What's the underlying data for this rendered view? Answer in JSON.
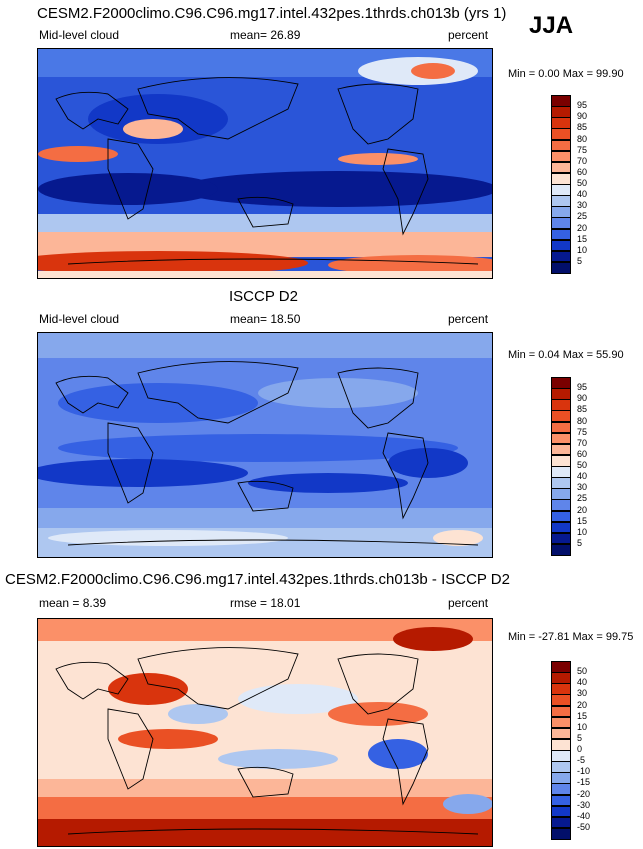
{
  "season": "JJA",
  "panels": [
    {
      "title": "CESM2.F2000climo.C96.C96.mg17.intel.432pes.1thrds.ch013b (yrs 1)",
      "left_label": "Mid-level cloud",
      "stat_text": "mean=  26.89",
      "units": "percent",
      "minmax": "Min =   0.00 Max =  99.90",
      "colorbar": {
        "labels": [
          "95",
          "90",
          "85",
          "80",
          "75",
          "70",
          "60",
          "50",
          "40",
          "30",
          "25",
          "20",
          "15",
          "10",
          "5"
        ],
        "colors": [
          "#7a0000",
          "#b51a00",
          "#d9340d",
          "#ea5024",
          "#f46d43",
          "#fb9068",
          "#fcb698",
          "#fde3d3",
          "#dfe9f8",
          "#aec7f0",
          "#86a8ec",
          "#5f85ea",
          "#3561e3",
          "#1238c7",
          "#06198f",
          "#020f6a"
        ]
      }
    },
    {
      "title": "ISCCP D2",
      "left_label": "Mid-level cloud",
      "stat_text": "mean=  18.50",
      "units": "percent",
      "minmax": "Min =   0.04 Max =  55.90",
      "colorbar": {
        "labels": [
          "95",
          "90",
          "85",
          "80",
          "75",
          "70",
          "60",
          "50",
          "40",
          "30",
          "25",
          "20",
          "15",
          "10",
          "5"
        ],
        "colors": [
          "#7a0000",
          "#b51a00",
          "#d9340d",
          "#ea5024",
          "#f46d43",
          "#fb9068",
          "#fcb698",
          "#fde3d3",
          "#dfe9f8",
          "#aec7f0",
          "#86a8ec",
          "#5f85ea",
          "#3561e3",
          "#1238c7",
          "#06198f",
          "#020f6a"
        ]
      }
    },
    {
      "title": "CESM2.F2000climo.C96.C96.mg17.intel.432pes.1thrds.ch013b - ISCCP D2",
      "left_label": "mean =   8.39",
      "stat_text": "rmse =  18.01",
      "units": "percent",
      "minmax": "Min = -27.81 Max =  99.75",
      "colorbar": {
        "labels": [
          "50",
          "40",
          "30",
          "20",
          "15",
          "10",
          "5",
          "0",
          "-5",
          "-10",
          "-15",
          "-20",
          "-30",
          "-40",
          "-50"
        ],
        "colors": [
          "#7a0000",
          "#b51a00",
          "#d9340d",
          "#ea5024",
          "#f46d43",
          "#fb9068",
          "#fcb698",
          "#fde3d3",
          "#dfe9f8",
          "#aec7f0",
          "#86a8ec",
          "#5f85ea",
          "#3561e3",
          "#1238c7",
          "#06198f",
          "#020f6a"
        ]
      }
    }
  ]
}
